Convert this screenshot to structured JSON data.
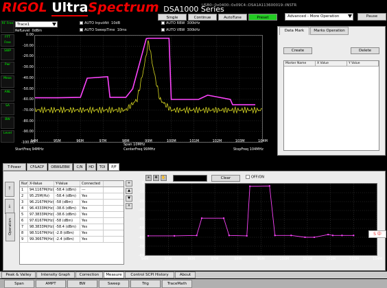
{
  "app": {
    "brand": "RIGOL",
    "brand_ultra": "Ultra",
    "brand_spectrum": "Spectrum",
    "model": "DSA1000 Series",
    "device_info": "USB0::0x0400::0x09C4::DSA1A113600019::INSTR"
  },
  "toolbar": {
    "single": "Single",
    "continue": "Continue",
    "autotune": "AutoTune",
    "preset": "Preset",
    "advanced": "Advanced - More Operation",
    "pause": "Pause"
  },
  "sidebar": [
    {
      "label": "RF Free"
    },
    {
      "label": "FFT Free"
    },
    {
      "label": "SWP"
    },
    {
      "label": "Pwr"
    },
    {
      "label": "Meas"
    },
    {
      "label": "ANL"
    },
    {
      "label": "SA"
    },
    {
      "label": "BW"
    },
    {
      "label": "Level"
    }
  ],
  "controls": {
    "trace_select": "Trace1",
    "auto_inputatt": "AUTO InputAtt",
    "inputatt_val": "10dB",
    "auto_sweeptime": "AUTO SweepTime",
    "sweeptime_val": "10ms",
    "auto_rbw": "AUTO RBW",
    "rbw_val": "300kHz",
    "auto_vbw": "AUTO VBW",
    "vbw_val": "300kHz",
    "reflevel": "RefLevel",
    "reflevel_val": "0dBm"
  },
  "main_plot": {
    "y_ticks": [
      "0.00",
      "-10.00",
      "-20.00",
      "-30.00",
      "-40.00",
      "-50.00",
      "-60.00",
      "-70.00",
      "-80.00",
      "-90.00",
      "-100.00"
    ],
    "x_ticks": [
      "94M",
      "95M",
      "96M",
      "97M",
      "98M",
      "99M",
      "100M",
      "101M",
      "102M",
      "103M",
      "104M"
    ],
    "span": "Span 10MHz",
    "start": "StartFreq 94MHz",
    "center": "CenterFreq 99MHz",
    "stop": "StopFreq 104MHz",
    "pink_trace_color": "#ff44ff",
    "yellow_trace_color": "#dddd22"
  },
  "chart_data": {
    "type": "line",
    "xlim": [
      94,
      104
    ],
    "ylim": [
      -100,
      0
    ],
    "x_unit": "MHz",
    "series": [
      {
        "color": "#ff44ff",
        "x": [
          94.0,
          95.0,
          96.0,
          96.3,
          97.2,
          97.3,
          98.0,
          98.3,
          98.9,
          99.0,
          99.9,
          100.0,
          100.6,
          101.2,
          101.6,
          102.6,
          102.7,
          103.7
        ],
        "y": [
          -58.4,
          -58.4,
          -58.0,
          -40.0,
          -38.6,
          -58.0,
          -58.0,
          -50.0,
          -2.8,
          -2.4,
          -2.4,
          -60.0,
          -60.0,
          -60.0,
          -56.0,
          -60.0,
          -65.0,
          -65.0
        ]
      },
      {
        "color": "#dddd22",
        "x": [
          94,
          95,
          96,
          97,
          98,
          98.5,
          98.8,
          99.0,
          99.2,
          99.5,
          100,
          101,
          102,
          103,
          104
        ],
        "y": [
          -70,
          -70,
          -70,
          -70,
          -70,
          -60,
          -30,
          -5,
          -30,
          -60,
          -70,
          -70,
          -70,
          -70,
          -70
        ]
      }
    ]
  },
  "right_panel": {
    "tab_data_mark": "Data Mark",
    "tab_marks_operation": "Marks Operation",
    "create": "Create",
    "delete": "Delete",
    "col_marker_name": "Marker Name",
    "col_x": "X Value",
    "col_y": "Y Value"
  },
  "bottom_tabs": [
    "T-Power",
    "CF&ACP",
    "OBW&EBW",
    "C/N",
    "HD",
    "TOI",
    "P/F"
  ],
  "pf_table": {
    "headers": [
      "Num",
      "X-Value",
      "Y-Value",
      "Connected"
    ],
    "rows": [
      [
        "1",
        "94.1167M(Hz)",
        "-58.4 (dBm)",
        "---"
      ],
      [
        "2",
        "95.25M(Hz)",
        "-58.4 (dBm)",
        "Yes"
      ],
      [
        "3",
        "96.2167M(Hz)",
        "-58 (dBm)",
        "Yes"
      ],
      [
        "4",
        "96.4333M(Hz)",
        "-38.6 (dBm)",
        "Yes"
      ],
      [
        "5",
        "97.3833M(Hz)",
        "-38.6 (dBm)",
        "Yes"
      ],
      [
        "6",
        "97.6167M(Hz)",
        "-58 (dBm)",
        "Yes"
      ],
      [
        "7",
        "98.3833M(Hz)",
        "-58.4 (dBm)",
        "Yes"
      ],
      [
        "8",
        "98.5167M(Hz)",
        "-2.8 (dBm)",
        "Yes"
      ],
      [
        "9",
        "99.3667M(Hz)",
        "-2.4 (dBm)",
        "Yes"
      ]
    ],
    "operation": "Operation",
    "clear": "Clear",
    "offon": "OFF/ON"
  },
  "pf_plot": {
    "y_ticks": [
      "0",
      "-10",
      "-20",
      "-30",
      "-40",
      "-50",
      "-60",
      "-70",
      "-80"
    ],
    "x_ticks": [
      "94M",
      "95M",
      "96M",
      "97M",
      "98M",
      "99M",
      "100M",
      "101M",
      "102M",
      "103M",
      "104M"
    ],
    "points_x": [
      94.1167,
      95.25,
      96.2167,
      96.4333,
      97.3833,
      97.6167,
      98.3833,
      98.5167,
      99.3667,
      99.6,
      100.3,
      100.9,
      101.3,
      101.9,
      102.1,
      102.5,
      103.0
    ],
    "points_y": [
      -58.4,
      -58.4,
      -58,
      -38.6,
      -38.6,
      -58,
      -58.4,
      -2.8,
      -2.4,
      -58,
      -58,
      -60,
      -60,
      -57,
      -58,
      -58,
      -58
    ]
  },
  "bottom_row1": [
    "Peak & Valley",
    "Intensity Graph",
    "Correction",
    "Measure",
    "Control SCPI History",
    "About"
  ],
  "bottom_row2": [
    "Span",
    "AMPT",
    "BW",
    "Sweep",
    "Trig",
    "TraceMath"
  ],
  "badge": "S 中"
}
